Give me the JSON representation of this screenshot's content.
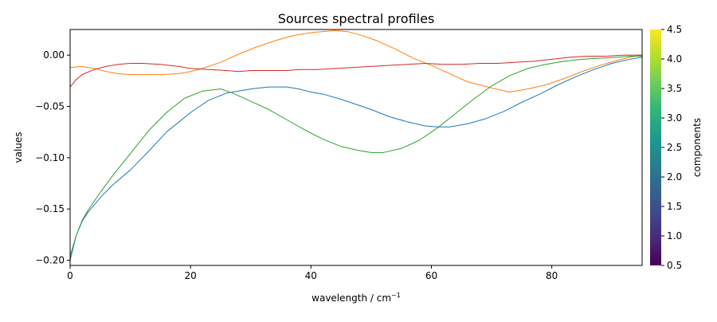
{
  "chart_data": {
    "type": "line",
    "title": "Sources spectral profiles",
    "xlabel": "wavelength / cm",
    "xlabel_sup": "−1",
    "ylabel": "values",
    "xlim": [
      0,
      95
    ],
    "ylim": [
      -0.205,
      0.025
    ],
    "x_ticks": [
      0,
      20,
      40,
      60,
      80
    ],
    "x_tick_labels": [
      "0",
      "20",
      "40",
      "60",
      "80"
    ],
    "y_ticks": [
      0.0,
      -0.05,
      -0.1,
      -0.15,
      -0.2
    ],
    "y_tick_labels": [
      "0.00",
      "−0.05",
      "−0.10",
      "−0.15",
      "−0.20"
    ],
    "grid": false,
    "series": [
      {
        "color": "#1f77b4",
        "x": [
          0,
          1,
          2,
          3,
          5,
          7,
          10,
          13,
          16,
          20,
          23,
          26,
          30,
          33,
          36,
          38,
          40,
          42,
          45,
          48,
          50,
          53,
          56,
          59,
          61,
          63,
          66,
          69,
          72,
          75,
          78,
          81,
          84,
          87,
          90,
          93,
          95
        ],
        "y": [
          -0.2,
          -0.176,
          -0.162,
          -0.153,
          -0.139,
          -0.127,
          -0.112,
          -0.094,
          -0.075,
          -0.056,
          -0.044,
          -0.037,
          -0.033,
          -0.031,
          -0.031,
          -0.033,
          -0.036,
          -0.038,
          -0.043,
          -0.049,
          -0.053,
          -0.06,
          -0.065,
          -0.069,
          -0.07,
          -0.07,
          -0.067,
          -0.062,
          -0.055,
          -0.046,
          -0.038,
          -0.029,
          -0.021,
          -0.014,
          -0.008,
          -0.004,
          -0.002
        ]
      },
      {
        "color": "#ff7f0e",
        "x": [
          0,
          2,
          4,
          6,
          8,
          10,
          12,
          15,
          18,
          20,
          22,
          25,
          28,
          31,
          34,
          37,
          40,
          42,
          44,
          46,
          48,
          51,
          54,
          57,
          60,
          63,
          66,
          70,
          73,
          76,
          79,
          82,
          85,
          88,
          91,
          93,
          95
        ],
        "y": [
          -0.012,
          -0.011,
          -0.013,
          -0.016,
          -0.018,
          -0.019,
          -0.019,
          -0.019,
          -0.018,
          -0.016,
          -0.013,
          -0.007,
          0.001,
          0.008,
          0.014,
          0.019,
          0.022,
          0.023,
          0.024,
          0.023,
          0.02,
          0.014,
          0.006,
          -0.003,
          -0.01,
          -0.018,
          -0.026,
          -0.032,
          -0.036,
          -0.033,
          -0.029,
          -0.023,
          -0.016,
          -0.01,
          -0.005,
          -0.002,
          0.0
        ]
      },
      {
        "color": "#2ca02c",
        "x": [
          0,
          1,
          2,
          3,
          5,
          7,
          10,
          13,
          16,
          19,
          22,
          25,
          27,
          30,
          33,
          36,
          39,
          42,
          45,
          48,
          50,
          52,
          55,
          58,
          61,
          64,
          67,
          70,
          73,
          76,
          79,
          82,
          85,
          88,
          91,
          93,
          95
        ],
        "y": [
          -0.196,
          -0.176,
          -0.161,
          -0.151,
          -0.134,
          -0.118,
          -0.096,
          -0.074,
          -0.056,
          -0.042,
          -0.035,
          -0.033,
          -0.037,
          -0.045,
          -0.053,
          -0.063,
          -0.073,
          -0.082,
          -0.089,
          -0.093,
          -0.095,
          -0.095,
          -0.091,
          -0.083,
          -0.071,
          -0.057,
          -0.043,
          -0.03,
          -0.02,
          -0.013,
          -0.009,
          -0.006,
          -0.004,
          -0.003,
          -0.002,
          -0.001,
          -0.001
        ]
      },
      {
        "color": "#d62728",
        "x": [
          0,
          1,
          2,
          4,
          6,
          8,
          10,
          12,
          15,
          18,
          20,
          23,
          26,
          28,
          30,
          33,
          36,
          38,
          41,
          44,
          47,
          50,
          53,
          56,
          59,
          62,
          65,
          68,
          71,
          74,
          77,
          80,
          83,
          86,
          89,
          92,
          95
        ],
        "y": [
          -0.031,
          -0.024,
          -0.019,
          -0.014,
          -0.011,
          -0.009,
          -0.008,
          -0.008,
          -0.009,
          -0.011,
          -0.013,
          -0.014,
          -0.015,
          -0.016,
          -0.015,
          -0.015,
          -0.015,
          -0.014,
          -0.014,
          -0.013,
          -0.012,
          -0.011,
          -0.01,
          -0.009,
          -0.008,
          -0.009,
          -0.009,
          -0.008,
          -0.008,
          -0.007,
          -0.006,
          -0.004,
          -0.002,
          -0.001,
          -0.001,
          0.0,
          0.0
        ]
      }
    ],
    "colorbar": {
      "label": "components",
      "range": [
        0.5,
        4.5
      ],
      "ticks": [
        0.5,
        1.0,
        1.5,
        2.0,
        2.5,
        3.0,
        3.5,
        4.0,
        4.5
      ],
      "tick_labels": [
        "0.5",
        "1.0",
        "1.5",
        "2.0",
        "2.5",
        "3.0",
        "3.5",
        "4.0",
        "4.5"
      ],
      "colormap": "viridis",
      "stops": [
        "#440154",
        "#482878",
        "#3e4989",
        "#31688e",
        "#26828e",
        "#1f9e89",
        "#35b779",
        "#6ece58",
        "#b5de2b",
        "#fde725"
      ]
    }
  }
}
